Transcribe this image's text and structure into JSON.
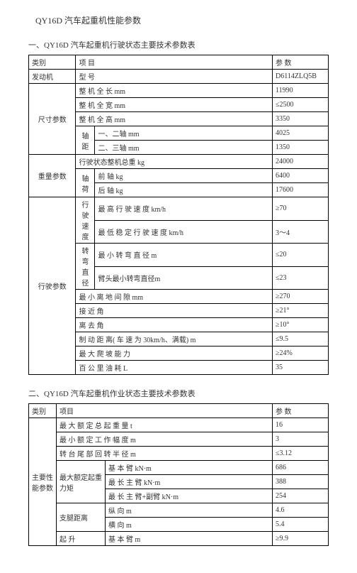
{
  "page_title": "QY16D 汽车起重机性能参数",
  "section1_title": "一、QY16D 汽车起重机行驶状态主要技术参数表",
  "section2_title": "二、QY16D 汽车起重机作业状态主要技术参数表",
  "t1": {
    "hdr_cat": "类别",
    "hdr_item": "项 目",
    "hdr_val": "参 数",
    "engine_label": "发动机",
    "engine_model_label": "型 号",
    "engine_model": "D6114ZLQ5B",
    "dim_label": "尺寸参数",
    "len_label": "整 机 全 长 mm",
    "len": "11990",
    "width_label": "整 机 全 宽 mm",
    "width": "≤2500",
    "height_label": "整 机 全 高 mm",
    "height": "3350",
    "axle_label": "轴距",
    "axle12_label": "一、二轴 mm",
    "axle12": "4025",
    "axle23_label": "二、三轴 mm",
    "axle23": "1350",
    "weight_label": "重量参数",
    "total_weight_label": "行驶状态整机总重 kg",
    "total_weight": "24000",
    "axle_load_label": "轴荷",
    "front_axle_label": "前 轴 kg",
    "front_axle": "6400",
    "rear_axle_label": "后 轴 kg",
    "rear_axle": "17600",
    "drive_label": "行驶参数",
    "speed_label": "行驶速度",
    "max_speed_label": "最 高 行 驶 速 度 km/h",
    "max_speed": "≥70",
    "min_speed_label": "最 低 稳 定 行 驶 速 度 km/h",
    "min_speed": "3～4",
    "turn_label": "转弯直径",
    "min_turn_label": "最 小 转 弯 直 径 m",
    "min_turn": "≤20",
    "head_turn_label": "臂头最小转弯直径m",
    "head_turn": "≤23",
    "clearance_label": "最 小 离 地 间 隙 mm",
    "clearance": "≥270",
    "approach_label": "接 近 角",
    "approach": "≥21°",
    "depart_label": "离 去 角",
    "depart": "≥10°",
    "brake_label": "制 动 距 离( 车 速 为 30km/h、满载) m",
    "brake": "≤9.5",
    "climb_label": "最 大 爬 坡 能 力",
    "climb": "≥24%",
    "fuel_label": "百 公 里 油 耗 L",
    "fuel": "35"
  },
  "t2": {
    "hdr_cat": "类别",
    "hdr_item": "项目",
    "hdr_val": "参 数",
    "main_label": "主要性能参数",
    "max_lift_label": "最 大 额 定 总 起 重 量 t",
    "max_lift": "16",
    "max_radius_label": "最 小 额 定 工 作 幅 度 m",
    "max_radius": "3",
    "tail_label": "转 台 尾 部 回 转 半 径 m",
    "tail": "≤3.12",
    "moment_label": "最大额定起重力矩",
    "basic_boom_label": "基 本 臂 kN·m",
    "basic_boom": "686",
    "long_boom_label": "最 长 主 臂 kN·m",
    "long_boom": "388",
    "fly_boom_label": "最 长 主 臂+副臂 kN·m",
    "fly_boom": "254",
    "outrigger_label": "支腿距离",
    "out_lon_label": "纵 向 m",
    "out_lon": "4.6",
    "out_lat_label": "横 向 m",
    "out_lat": "5.4",
    "hoist_label": "起 升",
    "hoist_basic_label": "基 本 臂 m",
    "hoist_basic": "≥9.9"
  }
}
